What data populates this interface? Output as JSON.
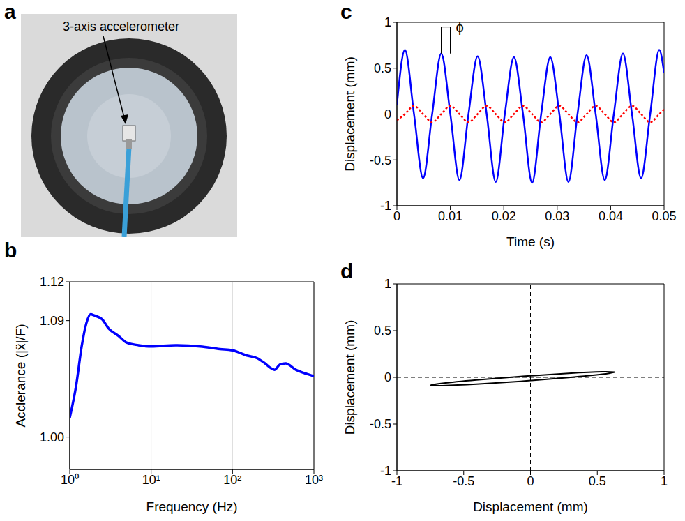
{
  "photo": {
    "panel_label": "a",
    "annotation": "3-axis accelerometer"
  },
  "chart_data": [
    {
      "panel_label": "b",
      "type": "line",
      "x_label": "Frequency (Hz)",
      "y_label": "Acclerance (|ẍ|/F)",
      "log": "x",
      "grid": "x",
      "x": [
        1,
        1.2,
        1.4,
        1.6,
        1.8,
        2,
        2.5,
        3,
        4,
        5,
        7,
        10,
        20,
        40,
        70,
        100,
        150,
        200,
        250,
        300,
        330,
        380,
        450,
        600,
        800,
        1000
      ],
      "series": [
        {
          "color": "#0000ff",
          "line_style": "solid",
          "values": [
            1.015,
            1.04,
            1.07,
            1.088,
            1.095,
            1.094,
            1.091,
            1.084,
            1.078,
            1.073,
            1.071,
            1.07,
            1.071,
            1.07,
            1.068,
            1.067,
            1.063,
            1.061,
            1.057,
            1.053,
            1.052,
            1.056,
            1.057,
            1.052,
            1.049,
            1.047
          ]
        }
      ],
      "xlim": [
        1,
        1000
      ],
      "xticks": [
        {
          "value": 1,
          "label": "10⁰"
        },
        {
          "value": 10,
          "label": "10¹"
        },
        {
          "value": 100,
          "label": "10²"
        },
        {
          "value": 1000,
          "label": "10³"
        }
      ],
      "ylim": [
        0.975,
        1.12
      ],
      "yticks": [
        {
          "value": 1,
          "label": "1.00"
        },
        1.09,
        1.12
      ]
    },
    {
      "panel_label": "c",
      "type": "line",
      "x_label": "Time (s)",
      "y_label": "Displacement (mm)",
      "x": [
        0,
        0.0015,
        0.0032,
        0.0049,
        0.0066,
        0.0083,
        0.01,
        0.0117,
        0.0134,
        0.0151,
        0.0168,
        0.0185,
        0.0202,
        0.0219,
        0.0236,
        0.0253,
        0.027,
        0.0287,
        0.0304,
        0.0321,
        0.0338,
        0.0355,
        0.0372,
        0.0389,
        0.0406,
        0.0423,
        0.044,
        0.0457,
        0.0474,
        0.0491,
        0.05
      ],
      "series": [
        {
          "color": "#0000ff",
          "line_style": "solid",
          "values": [
            0.1,
            0.7,
            0,
            -0.7,
            0,
            0.66,
            0,
            -0.72,
            0,
            0.63,
            0,
            -0.74,
            0,
            0.62,
            0,
            -0.75,
            0,
            0.62,
            0,
            -0.74,
            0,
            0.64,
            0,
            -0.72,
            0,
            0.66,
            0,
            -0.7,
            0,
            0.7,
            0.45
          ]
        },
        {
          "color": "#ff0000",
          "line_style": "dotted",
          "values": [
            -0.07,
            0,
            0.09,
            0,
            -0.09,
            0,
            0.09,
            0,
            -0.09,
            0,
            0.09,
            0,
            -0.09,
            0,
            0.09,
            0,
            -0.09,
            0,
            0.09,
            0,
            -0.09,
            0,
            0.09,
            0,
            -0.09,
            0,
            0.09,
            0,
            -0.09,
            0,
            0.05
          ]
        }
      ],
      "xlim": [
        0,
        0.05
      ],
      "xticks": [
        0,
        0.01,
        0.02,
        0.03,
        0.04,
        0.05
      ],
      "ylim": [
        -1,
        1
      ],
      "yticks": [
        -1,
        -0.5,
        0,
        0.5,
        1
      ],
      "annotations": [
        {
          "text": "ϕ",
          "x": [
            0.0083,
            0.01
          ],
          "y": [
            0.66,
            0.95
          ]
        }
      ]
    },
    {
      "panel_label": "d",
      "type": "line",
      "x_label": "Displacement (mm)",
      "y_label": "Displacement (mm)",
      "x": [
        0.63,
        0.538,
        0.285,
        -0.06,
        -0.405,
        -0.658,
        -0.75,
        -0.658,
        -0.405,
        -0.06,
        0.285,
        0.538,
        0.63
      ],
      "series": [
        {
          "color": "#000000",
          "line_style": "solid",
          "values": [
            0.056,
            0.059,
            0.043,
            0.011,
            -0.028,
            -0.063,
            -0.086,
            -0.089,
            -0.073,
            -0.041,
            -0.002,
            0.033,
            0.056
          ]
        }
      ],
      "xlim": [
        -1,
        1
      ],
      "xticks": [
        -1,
        -0.5,
        0,
        0.5,
        1
      ],
      "ylim": [
        -1,
        1
      ],
      "yticks": [
        -1,
        -0.5,
        0,
        0.5,
        1
      ],
      "reference_lines": {
        "x": 0,
        "y": 0,
        "line_style": "dashed"
      }
    }
  ]
}
